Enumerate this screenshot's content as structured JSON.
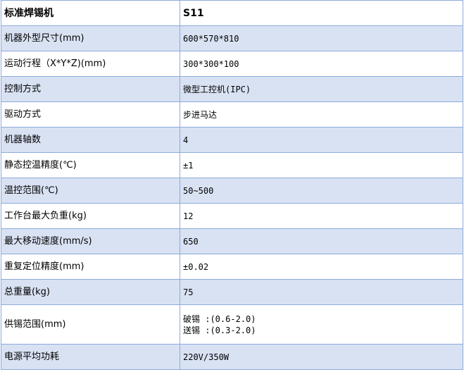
{
  "header": {
    "label": "标准焊锡机",
    "value": "S11"
  },
  "rows": [
    {
      "label": "机器外型尺寸(mm)",
      "value": "600*570*810"
    },
    {
      "label": "运动行程（X*Y*Z)(mm)",
      "value": "300*300*100"
    },
    {
      "label": "控制方式",
      "value": "微型工控机(IPC)"
    },
    {
      "label": "驱动方式",
      "value": "步进马达"
    },
    {
      "label": "机器轴数",
      "value": "4"
    },
    {
      "label": "静态控温精度(℃)",
      "value": "±1"
    },
    {
      "label": "温控范围(℃)",
      "value": "50~500"
    },
    {
      "label": "工作台最大负重(kg)",
      "value": "12"
    },
    {
      "label": "最大移动速度(mm/s)",
      "value": "650"
    },
    {
      "label": "重复定位精度(mm)",
      "value": "±0.02"
    },
    {
      "label": "总重量(kg)",
      "value": "75"
    },
    {
      "label": "供锡范围(mm)",
      "value": "破锡 :(0.6-2.0)",
      "value2": "送锡 :(0.3-2.0)"
    },
    {
      "label": "电源平均功耗",
      "value": "220V/350W"
    }
  ]
}
